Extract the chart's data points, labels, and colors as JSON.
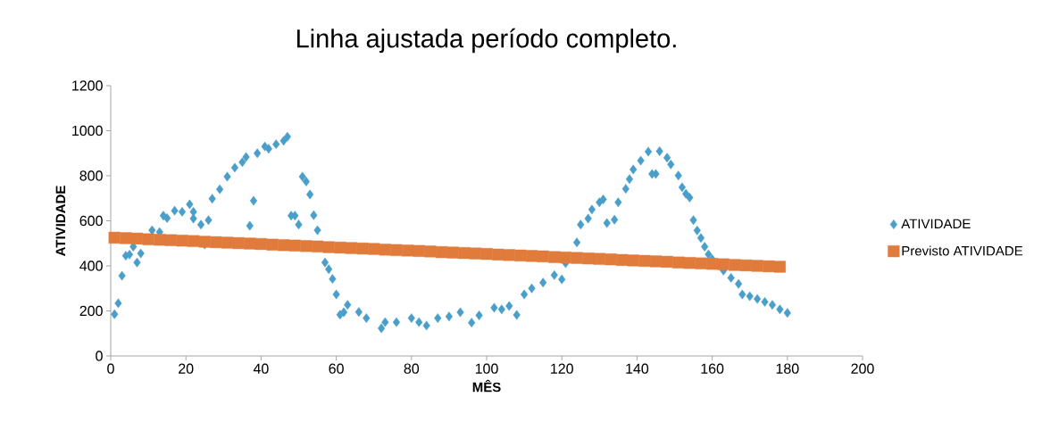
{
  "chart_data": {
    "type": "scatter",
    "title": "Linha ajustada período completo.",
    "xlabel": "MÊS",
    "ylabel": "ATIVIDADE",
    "xlim": [
      0,
      200
    ],
    "xticks": [
      0,
      20,
      40,
      60,
      80,
      100,
      120,
      140,
      160,
      180,
      200
    ],
    "ylim": [
      0,
      1200
    ],
    "yticks": [
      0,
      200,
      400,
      600,
      800,
      1000,
      1200
    ],
    "grid": false,
    "legend": "right",
    "series": [
      {
        "name": "ATIVIDADE",
        "color": "#4a9fca",
        "marker": "diamond",
        "x": [
          1,
          2,
          3,
          4,
          5,
          6,
          7,
          8,
          11,
          13,
          14,
          15,
          17,
          19,
          21,
          22,
          22,
          24,
          25,
          26,
          27,
          29,
          31,
          33,
          35,
          36,
          37,
          38,
          39,
          41,
          42,
          44,
          46,
          47,
          48,
          49,
          50,
          51,
          52,
          53,
          54,
          55,
          57,
          58,
          59,
          60,
          61,
          62,
          63,
          66,
          68,
          72,
          73,
          76,
          80,
          82,
          84,
          87,
          90,
          93,
          96,
          98,
          102,
          104,
          106,
          108,
          110,
          112,
          115,
          118,
          120,
          121,
          124,
          125,
          127,
          128,
          130,
          131,
          132,
          134,
          135,
          137,
          138,
          139,
          141,
          143,
          144,
          145,
          146,
          148,
          149,
          151,
          152,
          153,
          154,
          155,
          156,
          157,
          158,
          159,
          160,
          161,
          163,
          165,
          167,
          168,
          170,
          172,
          174,
          176,
          178,
          180
        ],
        "values": [
          185,
          234,
          356,
          445,
          450,
          485,
          415,
          455,
          558,
          550,
          623,
          612,
          645,
          640,
          673,
          640,
          610,
          583,
          495,
          603,
          698,
          740,
          796,
          836,
          860,
          883,
          578,
          689,
          900,
          930,
          920,
          940,
          955,
          973,
          623,
          623,
          583,
          796,
          774,
          717,
          625,
          558,
          415,
          385,
          342,
          273,
          183,
          194,
          227,
          195,
          168,
          123,
          150,
          150,
          168,
          150,
          135,
          168,
          175,
          194,
          148,
          180,
          214,
          207,
          222,
          182,
          273,
          300,
          326,
          359,
          340,
          412,
          504,
          583,
          610,
          650,
          682,
          695,
          590,
          605,
          682,
          742,
          785,
          828,
          867,
          907,
          808,
          808,
          909,
          880,
          850,
          801,
          749,
          720,
          703,
          603,
          557,
          524,
          485,
          451,
          430,
          null,
          379,
          347,
          320,
          273,
          265,
          253,
          240,
          227,
          207,
          191
        ]
      },
      {
        "name": "Previsto ATIVIDADE",
        "color": "#e07b3c",
        "marker": "square",
        "x": [
          1,
          4,
          7,
          10,
          13,
          16,
          19,
          22,
          25,
          28,
          31,
          34,
          37,
          40,
          43,
          46,
          49,
          52,
          55,
          58,
          61,
          64,
          67,
          70,
          73,
          76,
          79,
          82,
          85,
          88,
          91,
          94,
          97,
          100,
          103,
          106,
          109,
          112,
          115,
          118,
          121,
          124,
          127,
          130,
          133,
          136,
          139,
          142,
          145,
          148,
          151,
          154,
          157,
          160,
          163,
          166,
          169,
          172,
          175,
          178
        ],
        "values": [
          525,
          523,
          521,
          518,
          516,
          514,
          512,
          510,
          507,
          505,
          503,
          501,
          499,
          497,
          494,
          492,
          490,
          488,
          486,
          483,
          481,
          479,
          477,
          475,
          472,
          470,
          468,
          466,
          464,
          461,
          459,
          457,
          455,
          453,
          450,
          448,
          446,
          444,
          442,
          439,
          437,
          435,
          433,
          431,
          429,
          426,
          424,
          422,
          420,
          418,
          415,
          413,
          411,
          409,
          407,
          404,
          402,
          400,
          398,
          396
        ]
      }
    ]
  }
}
